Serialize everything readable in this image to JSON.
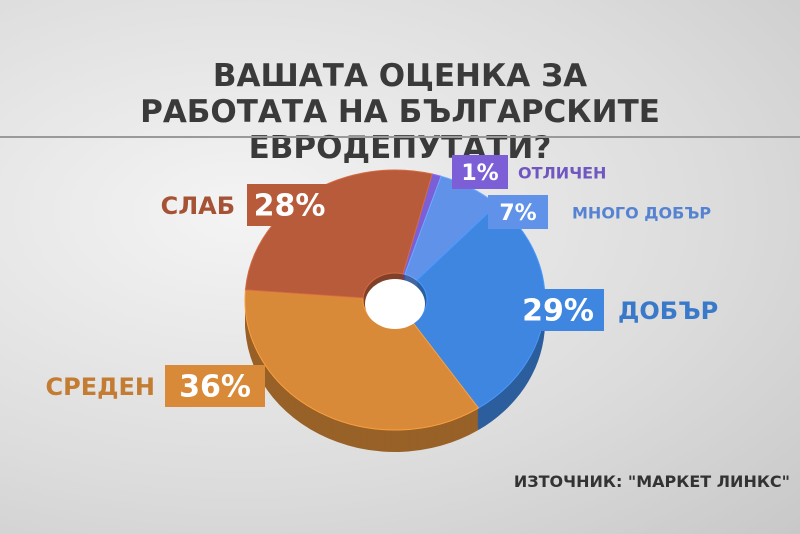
{
  "chart_data": {
    "type": "pie",
    "title": "ВАШАТА ОЦЕНКА ЗА РАБОТАТА НА БЪЛГАРСКИТЕ ЕВРОДЕПУТАТИ?",
    "categories": [
      "ОТЛИЧЕН",
      "МНОГО ДОБЪР",
      "ДОБЪР",
      "СРЕДЕН",
      "СЛАБ"
    ],
    "values": [
      1,
      7,
      29,
      36,
      28
    ],
    "value_labels": [
      "1%",
      "7%",
      "29%",
      "36%",
      "28%"
    ],
    "colors": [
      "#7c5fd6",
      "#5f92e8",
      "#3f86e0",
      "#d98a38",
      "#b85b3b"
    ],
    "source": "ИЗТОЧНИК: \"МАРКЕТ ЛИНКС\""
  }
}
